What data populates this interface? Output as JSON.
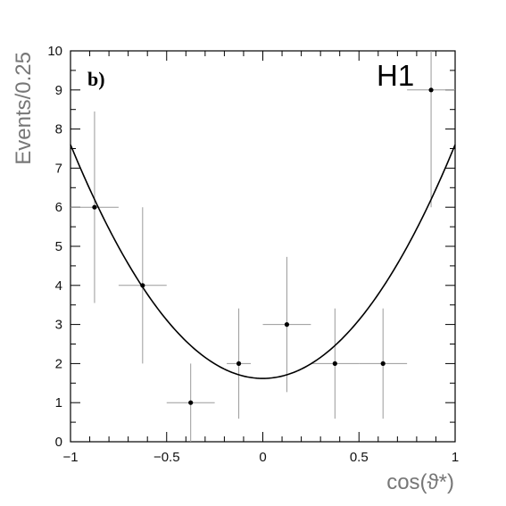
{
  "chart_data": {
    "type": "scatter",
    "panel_label": "b)",
    "experiment_label": "H1",
    "xlabel": "cos(ϑ*)",
    "ylabel": "Events/0.25",
    "xlim": [
      -1,
      1
    ],
    "ylim": [
      0,
      10
    ],
    "x_ticks": [
      -1,
      -0.5,
      0,
      0.5,
      1
    ],
    "x_tick_labels": [
      "−1",
      "−0.5",
      "0",
      "0.5",
      "1"
    ],
    "y_ticks": [
      0,
      1,
      2,
      3,
      4,
      5,
      6,
      7,
      8,
      9,
      10
    ],
    "y_tick_labels": [
      "0",
      "1",
      "2",
      "3",
      "4",
      "5",
      "6",
      "7",
      "8",
      "9",
      "10"
    ],
    "grid": false,
    "series": [
      {
        "type": "points_with_errors",
        "points": [
          {
            "x": -0.875,
            "y": 6,
            "xerr": 0.125,
            "yerr_low": 2.45,
            "yerr_high": 2.45
          },
          {
            "x": -0.625,
            "y": 4,
            "xerr": 0.125,
            "yerr_low": 2.0,
            "yerr_high": 2.0
          },
          {
            "x": -0.375,
            "y": 1,
            "xerr": 0.125,
            "yerr_low": 1.0,
            "yerr_high": 1.0
          },
          {
            "x": -0.125,
            "y": 2,
            "xerr": 0.0625,
            "yerr_low": 1.41,
            "yerr_high": 1.41
          },
          {
            "x": 0.125,
            "y": 3,
            "xerr": 0.125,
            "yerr_low": 1.73,
            "yerr_high": 1.73
          },
          {
            "x": 0.375,
            "y": 2,
            "xerr": 0.125,
            "yerr_low": 1.41,
            "yerr_high": 1.41
          },
          {
            "x": 0.625,
            "y": 2,
            "xerr": 0.125,
            "yerr_low": 1.41,
            "yerr_high": 1.41
          },
          {
            "x": 0.875,
            "y": 9,
            "xerr": 0.125,
            "yerr_low": 3.0,
            "yerr_high": 3.0
          }
        ]
      },
      {
        "type": "curve",
        "form": "y = a + b*x^2",
        "a": 1.62,
        "b": 5.98
      }
    ]
  }
}
